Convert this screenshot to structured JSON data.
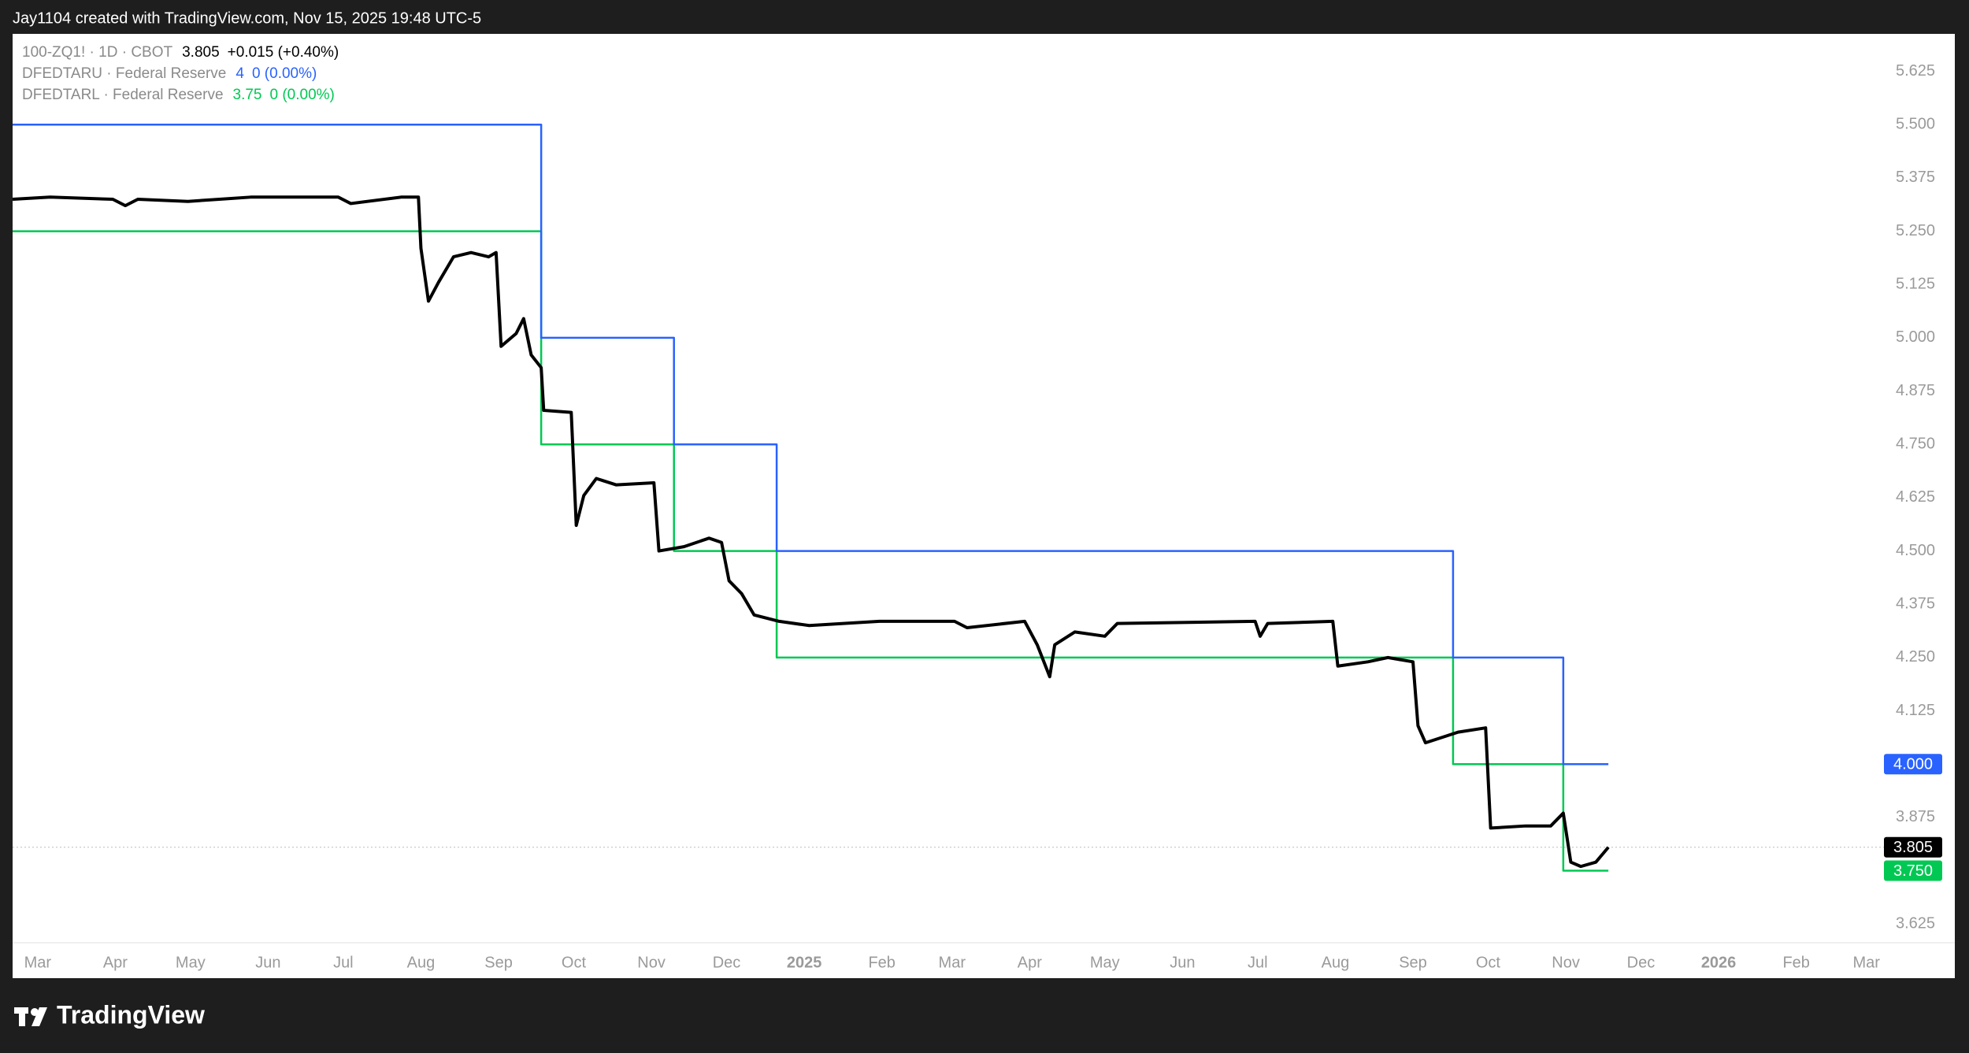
{
  "header": "Jay1104 created with TradingView.com, Nov 15, 2025 19:48 UTC-5",
  "footer": "TradingView",
  "chart_data": {
    "type": "line",
    "xlim": [
      -10,
      737
    ],
    "ylim": [
      3.581,
      5.713
    ],
    "xticks": [
      {
        "value": 0,
        "label": "Mar"
      },
      {
        "value": 31,
        "label": "Apr"
      },
      {
        "value": 61,
        "label": "May"
      },
      {
        "value": 92,
        "label": "Jun"
      },
      {
        "value": 122,
        "label": "Jul"
      },
      {
        "value": 153,
        "label": "Aug"
      },
      {
        "value": 184,
        "label": "Sep"
      },
      {
        "value": 214,
        "label": "Oct"
      },
      {
        "value": 245,
        "label": "Nov"
      },
      {
        "value": 275,
        "label": "Dec"
      },
      {
        "value": 306,
        "label": "2025"
      },
      {
        "value": 337,
        "label": "Feb"
      },
      {
        "value": 365,
        "label": "Mar"
      },
      {
        "value": 396,
        "label": "Apr"
      },
      {
        "value": 426,
        "label": "May"
      },
      {
        "value": 457,
        "label": "Jun"
      },
      {
        "value": 487,
        "label": "Jul"
      },
      {
        "value": 518,
        "label": "Aug"
      },
      {
        "value": 549,
        "label": "Sep"
      },
      {
        "value": 579,
        "label": "Oct"
      },
      {
        "value": 610,
        "label": "Nov"
      },
      {
        "value": 640,
        "label": "Dec"
      },
      {
        "value": 671,
        "label": "2026"
      },
      {
        "value": 702,
        "label": "Feb"
      },
      {
        "value": 730,
        "label": "Mar"
      }
    ],
    "yticks": [
      {
        "value": 3.625,
        "label": "3.625"
      },
      {
        "value": 3.875,
        "label": "3.875"
      },
      {
        "value": 4.125,
        "label": "4.125"
      },
      {
        "value": 4.25,
        "label": "4.250"
      },
      {
        "value": 4.375,
        "label": "4.375"
      },
      {
        "value": 4.5,
        "label": "4.500"
      },
      {
        "value": 4.625,
        "label": "4.625"
      },
      {
        "value": 4.75,
        "label": "4.750"
      },
      {
        "value": 4.875,
        "label": "4.875"
      },
      {
        "value": 5,
        "label": "5.000"
      },
      {
        "value": 5.125,
        "label": "5.125"
      },
      {
        "value": 5.25,
        "label": "5.250"
      },
      {
        "value": 5.375,
        "label": "5.375"
      },
      {
        "value": 5.5,
        "label": "5.500"
      },
      {
        "value": 5.625,
        "label": "5.625"
      }
    ],
    "series": [
      {
        "name": "100-ZQ1! · 1D · CBOT",
        "color": "#000000",
        "legend_value": "3.805",
        "legend_change": "+0.015 (+0.40%)",
        "last_label": "3.805",
        "x": [
          -10,
          5,
          30,
          35,
          40,
          60,
          85,
          120,
          125,
          145,
          152,
          153,
          156,
          160,
          166,
          173,
          180,
          183,
          185,
          191,
          194,
          197,
          201,
          202,
          213,
          215,
          218,
          223,
          231,
          246,
          248,
          258,
          268,
          273,
          276,
          281,
          286,
          296,
          308,
          336,
          366,
          371,
          394,
          399,
          404,
          406,
          414,
          426,
          431,
          486,
          488,
          491,
          517,
          519,
          531,
          539,
          544,
          549,
          551,
          554,
          567,
          578,
          580,
          594,
          604,
          609,
          612,
          616,
          622,
          627
        ],
        "values": [
          5.325,
          5.33,
          5.325,
          5.31,
          5.325,
          5.32,
          5.33,
          5.33,
          5.315,
          5.33,
          5.33,
          5.21,
          5.086,
          5.13,
          5.19,
          5.2,
          5.19,
          5.2,
          4.98,
          5.01,
          5.045,
          4.96,
          4.93,
          4.83,
          4.825,
          4.56,
          4.63,
          4.67,
          4.655,
          4.66,
          4.5,
          4.51,
          4.53,
          4.52,
          4.43,
          4.4,
          4.35,
          4.335,
          4.325,
          4.335,
          4.335,
          4.32,
          4.335,
          4.28,
          4.205,
          4.28,
          4.31,
          4.3,
          4.33,
          4.335,
          4.3,
          4.33,
          4.335,
          4.23,
          4.24,
          4.25,
          4.245,
          4.24,
          4.09,
          4.05,
          4.075,
          4.085,
          3.85,
          3.855,
          3.855,
          3.885,
          3.77,
          3.76,
          3.77,
          3.805
        ]
      },
      {
        "name": "DFEDTARU · Federal Reserve",
        "color": "#2962ff",
        "legend_value": "4",
        "legend_change": "0 (0.00%)",
        "last_label": "4.000",
        "x": [
          -10,
          201,
          201,
          254,
          254,
          295,
          295,
          565,
          565,
          609,
          609,
          627
        ],
        "values": [
          5.5,
          5.5,
          5,
          5,
          4.75,
          4.75,
          4.5,
          4.5,
          4.25,
          4.25,
          4,
          4
        ]
      },
      {
        "name": "DFEDTARL · Federal Reserve",
        "color": "#00c853",
        "legend_value": "3.75",
        "legend_change": "0 (0.00%)",
        "last_label": "3.750",
        "x": [
          -10,
          201,
          201,
          254,
          254,
          295,
          295,
          565,
          565,
          609,
          609,
          627
        ],
        "values": [
          5.25,
          5.25,
          4.75,
          4.75,
          4.5,
          4.5,
          4.25,
          4.25,
          4,
          4,
          3.75,
          3.75
        ]
      }
    ]
  }
}
